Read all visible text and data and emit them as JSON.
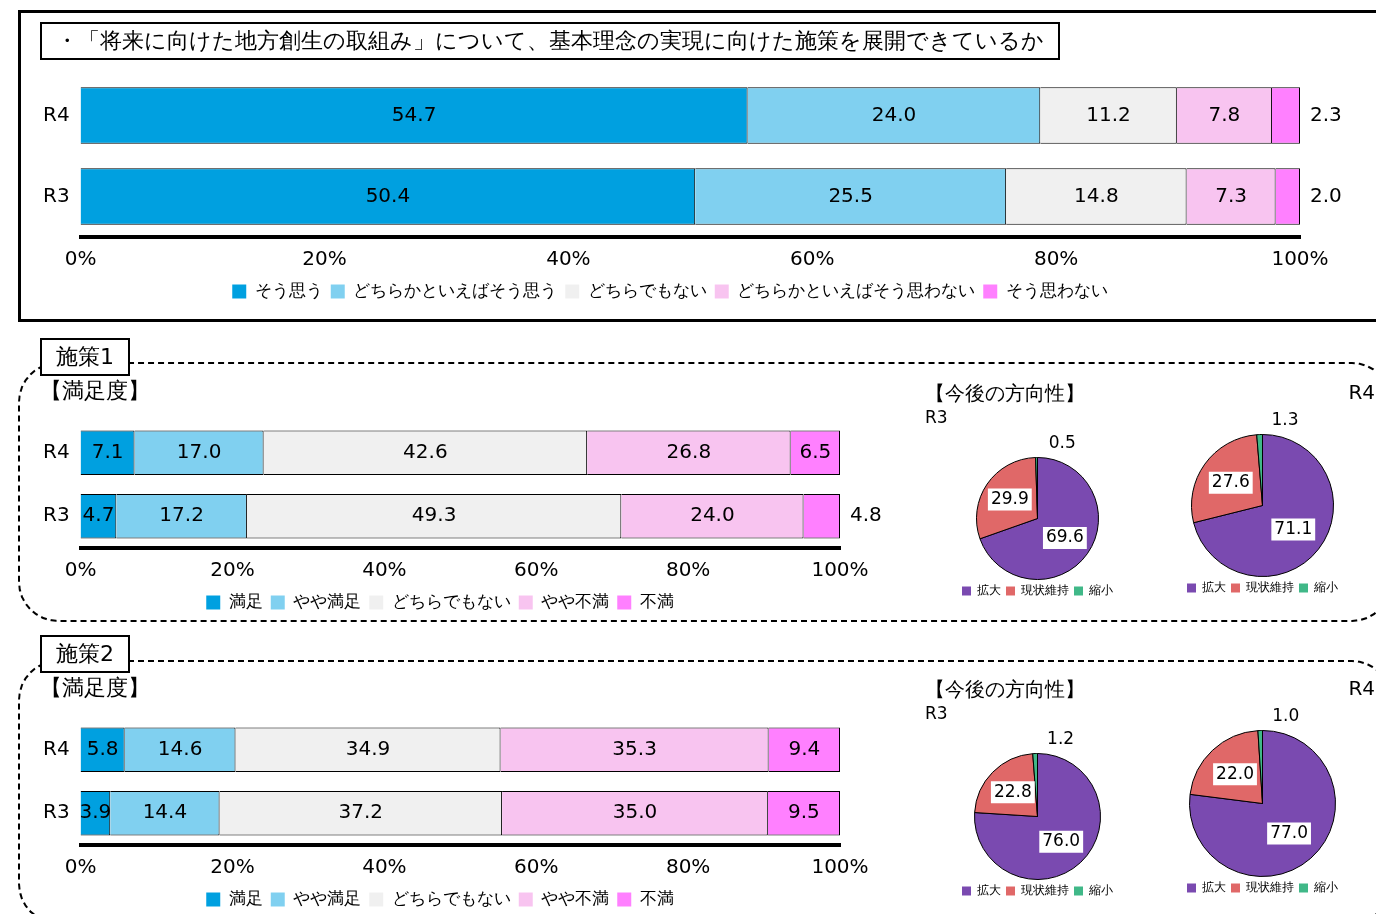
{
  "chart_data": [
    {
      "type": "bar",
      "title": "・「将来に向けた地方創生の取組み」について、基本理念の実現に向けた施策を展開できているか",
      "orientation": "horizontal",
      "stacked": true,
      "categories": [
        "R4",
        "R3"
      ],
      "xlim": [
        0,
        100
      ],
      "xticks": [
        {
          "value": 0,
          "label": "0%"
        },
        {
          "value": 20,
          "label": "20%"
        },
        {
          "value": 40,
          "label": "40%"
        },
        {
          "value": 60,
          "label": "60%"
        },
        {
          "value": 80,
          "label": "80%"
        },
        {
          "value": 100,
          "label": "100%"
        }
      ],
      "grid": false,
      "legend": "bottom",
      "series": [
        {
          "name": "そう思う",
          "color": "#00a0e0",
          "values": [
            54.7,
            50.4
          ],
          "value_labels": [
            "54.7",
            "50.4"
          ]
        },
        {
          "name": "どちらかといえばそう思う",
          "color": "#80d0f0",
          "values": [
            24.0,
            25.5
          ],
          "value_labels": [
            "24.0",
            "25.5"
          ]
        },
        {
          "name": "どちらでもない",
          "color": "#f0f0f0",
          "values": [
            11.2,
            14.8
          ],
          "value_labels": [
            "11.2",
            "14.8"
          ]
        },
        {
          "name": "どちらかといえばそう思わない",
          "color": "#f8c4f0",
          "values": [
            7.8,
            7.3
          ],
          "value_labels": [
            "7.8",
            "7.3"
          ]
        },
        {
          "name": "そう思わない",
          "color": "#ff80ff",
          "values": [
            2.3,
            2.0
          ],
          "value_labels": [
            "2.3",
            "2.0"
          ]
        }
      ]
    },
    {
      "type": "bar",
      "title": "施策1",
      "subtitle": "【満足度】",
      "orientation": "horizontal",
      "stacked": true,
      "categories": [
        "R4",
        "R3"
      ],
      "xlim": [
        0,
        100
      ],
      "xticks": [
        {
          "value": 0,
          "label": "0%"
        },
        {
          "value": 20,
          "label": "20%"
        },
        {
          "value": 40,
          "label": "40%"
        },
        {
          "value": 60,
          "label": "60%"
        },
        {
          "value": 80,
          "label": "80%"
        },
        {
          "value": 100,
          "label": "100%"
        }
      ],
      "grid": false,
      "legend": "bottom",
      "series": [
        {
          "name": "満足",
          "color": "#00a0e0",
          "values": [
            7.1,
            4.7
          ],
          "value_labels": [
            "7.1",
            "4.7"
          ]
        },
        {
          "name": "やや満足",
          "color": "#80d0f0",
          "values": [
            17.0,
            17.2
          ],
          "value_labels": [
            "17.0",
            "17.2"
          ]
        },
        {
          "name": "どちらでもない",
          "color": "#f0f0f0",
          "values": [
            42.6,
            49.3
          ],
          "value_labels": [
            "42.6",
            "49.3"
          ]
        },
        {
          "name": "やや不満",
          "color": "#f8c4f0",
          "values": [
            26.8,
            24.0
          ],
          "value_labels": [
            "26.8",
            "24.0"
          ]
        },
        {
          "name": "不満",
          "color": "#ff80ff",
          "values": [
            6.5,
            4.8
          ],
          "value_labels": [
            "6.5",
            "4.8"
          ]
        }
      ]
    },
    {
      "type": "pie",
      "title": "【今後の方向性】",
      "subtitle": "R3",
      "categories": [
        "拡大",
        "現状維持",
        "縮小"
      ],
      "values": [
        69.6,
        29.9,
        0.5
      ],
      "value_labels": [
        "69.6",
        "29.9",
        "0.5"
      ],
      "colors": [
        "#7a4ab0",
        "#e06868",
        "#40b888"
      ],
      "legend": "bottom"
    },
    {
      "type": "pie",
      "title": "R4",
      "categories": [
        "拡大",
        "現状維持",
        "縮小"
      ],
      "values": [
        71.1,
        27.6,
        1.3
      ],
      "value_labels": [
        "71.1",
        "27.6",
        "1.3"
      ],
      "colors": [
        "#7a4ab0",
        "#e06868",
        "#40b888"
      ],
      "legend": "bottom"
    },
    {
      "type": "bar",
      "title": "施策2",
      "subtitle": "【満足度】",
      "orientation": "horizontal",
      "stacked": true,
      "categories": [
        "R4",
        "R3"
      ],
      "xlim": [
        0,
        100
      ],
      "xticks": [
        {
          "value": 0,
          "label": "0%"
        },
        {
          "value": 20,
          "label": "20%"
        },
        {
          "value": 40,
          "label": "40%"
        },
        {
          "value": 60,
          "label": "60%"
        },
        {
          "value": 80,
          "label": "80%"
        },
        {
          "value": 100,
          "label": "100%"
        }
      ],
      "grid": false,
      "legend": "bottom",
      "series": [
        {
          "name": "満足",
          "color": "#00a0e0",
          "values": [
            5.8,
            3.9
          ],
          "value_labels": [
            "5.8",
            "3.9"
          ]
        },
        {
          "name": "やや満足",
          "color": "#80d0f0",
          "values": [
            14.6,
            14.4
          ],
          "value_labels": [
            "14.6",
            "14.4"
          ]
        },
        {
          "name": "どちらでもない",
          "color": "#f0f0f0",
          "values": [
            34.9,
            37.2
          ],
          "value_labels": [
            "34.9",
            "37.2"
          ]
        },
        {
          "name": "やや不満",
          "color": "#f8c4f0",
          "values": [
            35.3,
            35.0
          ],
          "value_labels": [
            "35.3",
            "35.0"
          ]
        },
        {
          "name": "不満",
          "color": "#ff80ff",
          "values": [
            9.4,
            9.5
          ],
          "value_labels": [
            "9.4",
            "9.5"
          ]
        }
      ]
    },
    {
      "type": "pie",
      "title": "【今後の方向性】",
      "subtitle": "R3",
      "categories": [
        "拡大",
        "現状維持",
        "縮小"
      ],
      "values": [
        76.0,
        22.8,
        1.2
      ],
      "value_labels": [
        "76.0",
        "22.8",
        "1.2"
      ],
      "colors": [
        "#7a4ab0",
        "#e06868",
        "#40b888"
      ],
      "legend": "bottom"
    },
    {
      "type": "pie",
      "title": "R4",
      "categories": [
        "拡大",
        "現状維持",
        "縮小"
      ],
      "values": [
        77.0,
        22.0,
        1.0
      ],
      "value_labels": [
        "77.0",
        "22.0",
        "1.0"
      ],
      "colors": [
        "#7a4ab0",
        "#e06868",
        "#40b888"
      ],
      "legend": "bottom"
    }
  ]
}
